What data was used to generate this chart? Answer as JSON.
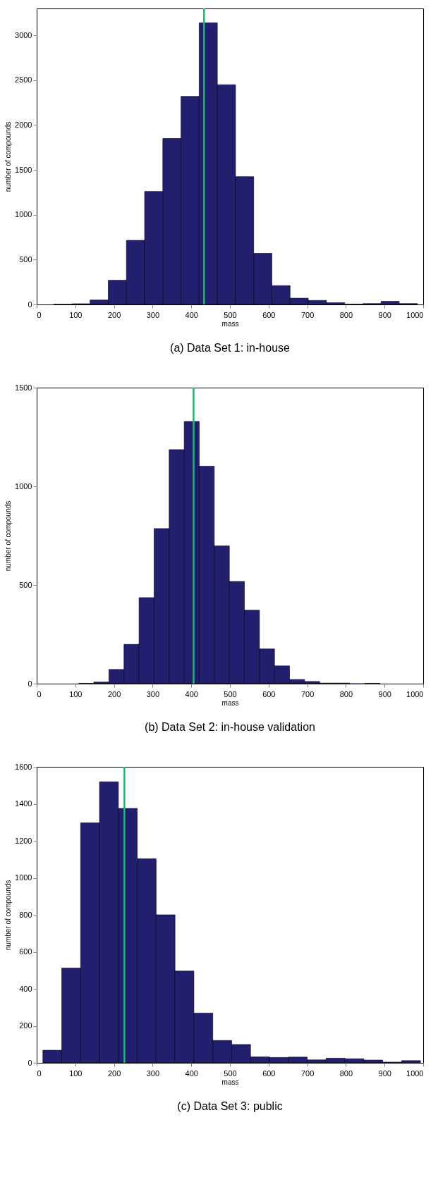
{
  "chart_data": [
    {
      "type": "histogram",
      "xlabel": "mass",
      "ylabel": "number of compounds",
      "color": "#231f6f",
      "bins": [
        44,
        91.05,
        138.1,
        185.15,
        232.2,
        279.25,
        326.3,
        373.35,
        420.4,
        467.45,
        514.5,
        561.55,
        608.6,
        655.65,
        702.7,
        749.75,
        796.8,
        843.85,
        890.9,
        937.95,
        985
      ],
      "values": [
        3,
        8,
        50,
        270,
        715,
        1260,
        1850,
        2320,
        3140,
        2450,
        1425,
        570,
        210,
        70,
        45,
        20,
        5,
        10,
        35,
        10
      ],
      "xlim": [
        0,
        1000
      ],
      "xticks": [
        0,
        100,
        200,
        300,
        400,
        500,
        600,
        700,
        800,
        900,
        1000
      ],
      "ylim": [
        0,
        3300
      ],
      "yticks": [
        0,
        500,
        1000,
        1500,
        2000,
        2500,
        3000
      ],
      "ref_lines": [
        {
          "axis": "x",
          "value": 433,
          "color": "#1db86e"
        }
      ],
      "annotations": [
        "(a)  Data Set 1: in-house"
      ]
    },
    {
      "type": "histogram",
      "xlabel": "mass",
      "ylabel": "number of compounds",
      "color": "#231f6f",
      "bins": [
        109,
        147.95,
        186.9,
        225.85,
        264.8,
        303.75,
        342.7,
        381.65,
        420.6,
        459.55,
        498.5,
        537.45,
        576.4,
        615.35,
        654.3,
        693.25,
        732.2,
        771.15,
        810.1,
        849.05,
        888
      ],
      "values": [
        2,
        8,
        72,
        199,
        436,
        786,
        1186,
        1329,
        1102,
        698,
        518,
        372,
        176,
        90,
        21,
        11,
        3,
        3,
        0,
        2
      ],
      "xlim": [
        0,
        1000
      ],
      "xticks": [
        0,
        100,
        200,
        300,
        400,
        500,
        600,
        700,
        800,
        900,
        1000
      ],
      "ylim": [
        0,
        1500
      ],
      "yticks": [
        0,
        500,
        1000,
        1500
      ],
      "ref_lines": [
        {
          "axis": "x",
          "value": 406,
          "color": "#1db86e"
        }
      ],
      "annotations": [
        "(b)  Data Set 2: in-house validation"
      ]
    },
    {
      "type": "histogram",
      "xlabel": "mass",
      "ylabel": "number of compounds",
      "color": "#231f6f",
      "bins": [
        16,
        64.85,
        113.7,
        162.55,
        211.4,
        260.25,
        309.1,
        357.95,
        406.8,
        455.65,
        504.5,
        553.35,
        602.2,
        651.05,
        699.9,
        748.75,
        797.6,
        846.45,
        895.3,
        944.15,
        993
      ],
      "values": [
        68,
        512,
        1297,
        1519,
        1375,
        1103,
        800,
        496,
        269,
        121,
        99,
        32,
        29,
        31,
        16,
        25,
        22,
        15,
        4,
        12
      ],
      "xlim": [
        0,
        1000
      ],
      "xticks": [
        0,
        100,
        200,
        300,
        400,
        500,
        600,
        700,
        800,
        900,
        1000
      ],
      "ylim": [
        0,
        1600
      ],
      "yticks": [
        0,
        200,
        400,
        600,
        800,
        1000,
        1200,
        1400,
        1600
      ],
      "ref_lines": [
        {
          "axis": "x",
          "value": 227,
          "color": "#1db86e"
        }
      ],
      "annotations": [
        "(c)  Data Set 3: public"
      ]
    }
  ]
}
